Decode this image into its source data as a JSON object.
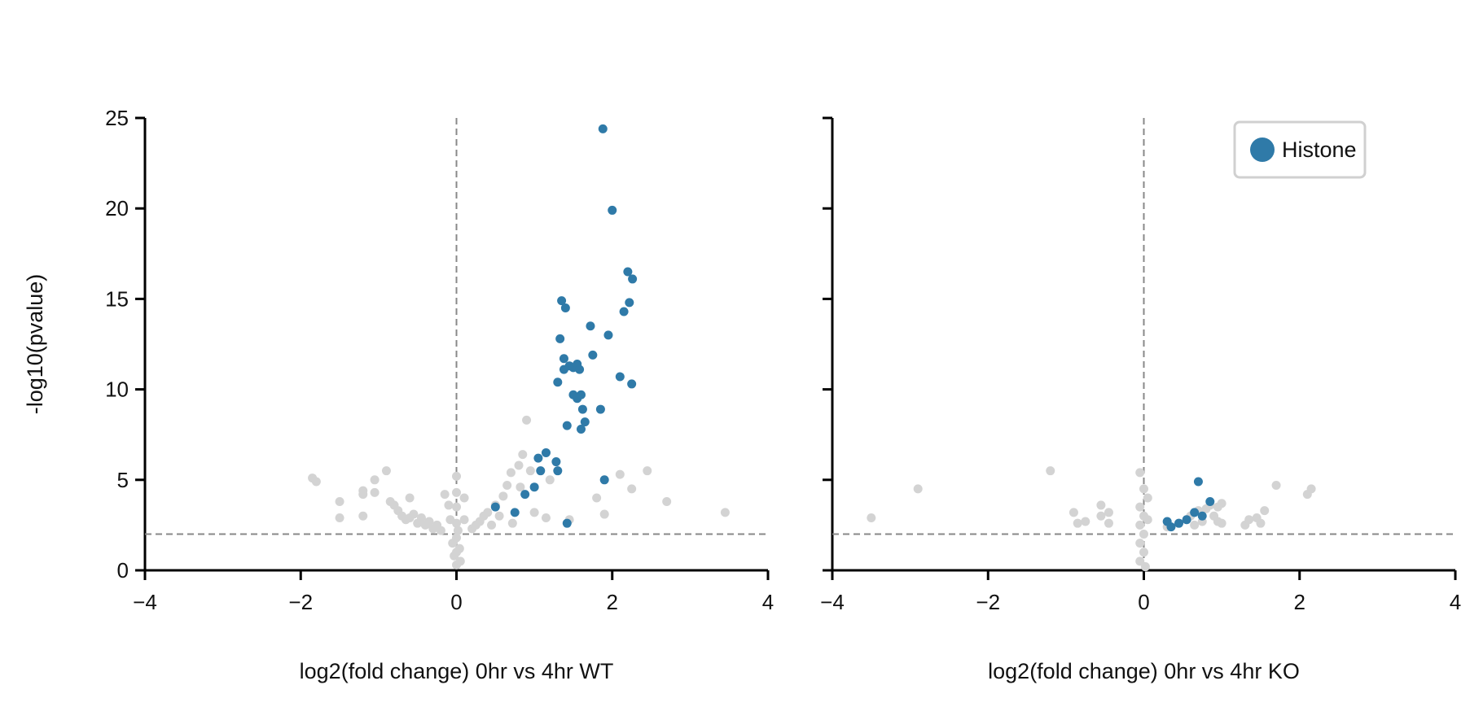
{
  "chart_data": [
    {
      "type": "scatter",
      "title": "",
      "xlabel": "log2(fold change) 0hr vs 4hr WT",
      "ylabel": "-log10(pvalue)",
      "xlim": [
        -4,
        4
      ],
      "ylim": [
        0,
        25
      ],
      "xticks": [
        "−4",
        "−2",
        "0",
        "2",
        "4"
      ],
      "yticks": [
        "0",
        "5",
        "10",
        "15",
        "20",
        "25"
      ],
      "reference_lines": {
        "vertical_x": 0,
        "horizontal_y": 2,
        "style": "dashed"
      },
      "grid": false,
      "legend": null,
      "series": [
        {
          "name": "",
          "color": "#d3d3d3",
          "points": [
            [
              -1.85,
              5.1
            ],
            [
              -1.8,
              4.9
            ],
            [
              -1.5,
              3.8
            ],
            [
              -1.5,
              2.9
            ],
            [
              -1.2,
              4.4
            ],
            [
              -1.2,
              4.2
            ],
            [
              -1.2,
              3.0
            ],
            [
              -1.05,
              5.0
            ],
            [
              -1.05,
              4.3
            ],
            [
              -0.9,
              5.5
            ],
            [
              -0.85,
              3.8
            ],
            [
              -0.8,
              3.6
            ],
            [
              -0.75,
              3.3
            ],
            [
              -0.7,
              3.0
            ],
            [
              -0.65,
              2.8
            ],
            [
              -0.6,
              4.0
            ],
            [
              -0.6,
              2.9
            ],
            [
              -0.55,
              3.1
            ],
            [
              -0.5,
              2.6
            ],
            [
              -0.45,
              2.9
            ],
            [
              -0.4,
              2.5
            ],
            [
              -0.35,
              2.7
            ],
            [
              -0.3,
              2.3
            ],
            [
              -0.25,
              2.5
            ],
            [
              -0.2,
              2.2
            ],
            [
              -0.15,
              4.2
            ],
            [
              -0.1,
              3.6
            ],
            [
              -0.08,
              2.8
            ],
            [
              -0.05,
              1.5
            ],
            [
              -0.03,
              0.8
            ],
            [
              0.0,
              5.2
            ],
            [
              0.0,
              4.3
            ],
            [
              0.0,
              3.5
            ],
            [
              0.0,
              2.6
            ],
            [
              0.0,
              1.8
            ],
            [
              0.0,
              1.0
            ],
            [
              0.0,
              0.3
            ],
            [
              0.02,
              2.2
            ],
            [
              0.04,
              1.2
            ],
            [
              0.05,
              0.5
            ],
            [
              0.1,
              4.0
            ],
            [
              0.1,
              2.8
            ],
            [
              0.2,
              2.3
            ],
            [
              0.25,
              2.5
            ],
            [
              0.3,
              2.7
            ],
            [
              0.35,
              3.0
            ],
            [
              0.4,
              3.2
            ],
            [
              0.45,
              2.5
            ],
            [
              0.5,
              3.6
            ],
            [
              0.55,
              3.0
            ],
            [
              0.6,
              4.1
            ],
            [
              0.65,
              4.7
            ],
            [
              0.7,
              5.4
            ],
            [
              0.72,
              2.6
            ],
            [
              0.8,
              5.8
            ],
            [
              0.82,
              4.6
            ],
            [
              0.85,
              6.4
            ],
            [
              0.9,
              8.3
            ],
            [
              0.95,
              5.5
            ],
            [
              1.0,
              3.2
            ],
            [
              1.15,
              2.9
            ],
            [
              1.2,
              5.0
            ],
            [
              1.45,
              2.8
            ],
            [
              1.9,
              3.1
            ],
            [
              1.8,
              4.0
            ],
            [
              2.1,
              5.3
            ],
            [
              2.25,
              4.5
            ],
            [
              2.45,
              5.5
            ],
            [
              2.7,
              3.8
            ],
            [
              3.45,
              3.2
            ]
          ]
        },
        {
          "name": "Histone",
          "color": "#2f7aa8",
          "points": [
            [
              1.88,
              24.4
            ],
            [
              2.0,
              19.9
            ],
            [
              2.2,
              16.5
            ],
            [
              2.26,
              16.1
            ],
            [
              1.35,
              14.9
            ],
            [
              1.4,
              14.5
            ],
            [
              2.22,
              14.8
            ],
            [
              2.15,
              14.3
            ],
            [
              1.72,
              13.5
            ],
            [
              1.95,
              13.0
            ],
            [
              1.33,
              12.8
            ],
            [
              1.75,
              11.9
            ],
            [
              1.38,
              11.7
            ],
            [
              1.45,
              11.3
            ],
            [
              1.5,
              11.2
            ],
            [
              1.55,
              11.4
            ],
            [
              1.38,
              11.1
            ],
            [
              1.58,
              11.1
            ],
            [
              2.1,
              10.7
            ],
            [
              1.3,
              10.4
            ],
            [
              2.25,
              10.3
            ],
            [
              1.5,
              9.7
            ],
            [
              1.55,
              9.5
            ],
            [
              1.6,
              9.7
            ],
            [
              1.85,
              8.9
            ],
            [
              1.62,
              8.9
            ],
            [
              1.65,
              8.2
            ],
            [
              1.42,
              8.0
            ],
            [
              1.6,
              7.8
            ],
            [
              1.05,
              6.2
            ],
            [
              1.15,
              6.5
            ],
            [
              1.28,
              6.0
            ],
            [
              1.08,
              5.5
            ],
            [
              1.3,
              5.5
            ],
            [
              1.9,
              5.0
            ],
            [
              1.0,
              4.6
            ],
            [
              0.88,
              4.2
            ],
            [
              0.5,
              3.5
            ],
            [
              0.75,
              3.2
            ],
            [
              1.42,
              2.6
            ]
          ]
        }
      ]
    },
    {
      "type": "scatter",
      "title": "",
      "xlabel": "log2(fold change) 0hr vs 4hr KO",
      "ylabel": "",
      "xlim": [
        -4,
        4
      ],
      "ylim": [
        0,
        25
      ],
      "xticks": [
        "−4",
        "−2",
        "0",
        "2",
        "4"
      ],
      "yticks": [],
      "reference_lines": {
        "vertical_x": 0,
        "horizontal_y": 2,
        "style": "dashed"
      },
      "grid": false,
      "legend": {
        "position": "top-right",
        "entries": [
          "Histone"
        ]
      },
      "series": [
        {
          "name": "",
          "color": "#d3d3d3",
          "points": [
            [
              -3.5,
              2.9
            ],
            [
              -2.9,
              4.5
            ],
            [
              -1.2,
              5.5
            ],
            [
              -0.9,
              3.2
            ],
            [
              -0.85,
              2.6
            ],
            [
              -0.75,
              2.7
            ],
            [
              -0.55,
              3.6
            ],
            [
              -0.55,
              3.0
            ],
            [
              -0.45,
              2.6
            ],
            [
              -0.45,
              3.2
            ],
            [
              -0.05,
              5.4
            ],
            [
              -0.05,
              3.5
            ],
            [
              -0.05,
              2.5
            ],
            [
              -0.05,
              1.5
            ],
            [
              -0.05,
              0.5
            ],
            [
              0.0,
              4.5
            ],
            [
              0.0,
              3.0
            ],
            [
              0.0,
              2.0
            ],
            [
              0.0,
              1.0
            ],
            [
              0.02,
              0.2
            ],
            [
              0.05,
              2.8
            ],
            [
              0.05,
              4.0
            ],
            [
              0.3,
              2.4
            ],
            [
              0.45,
              2.6
            ],
            [
              0.55,
              2.8
            ],
            [
              0.6,
              3.0
            ],
            [
              0.7,
              3.3
            ],
            [
              0.75,
              2.7
            ],
            [
              0.8,
              3.4
            ],
            [
              0.85,
              3.6
            ],
            [
              0.9,
              3.0
            ],
            [
              0.95,
              3.5
            ],
            [
              1.0,
              3.7
            ],
            [
              1.0,
              2.6
            ],
            [
              1.3,
              2.5
            ],
            [
              1.35,
              2.8
            ],
            [
              1.45,
              2.9
            ],
            [
              1.5,
              2.6
            ],
            [
              1.55,
              3.3
            ],
            [
              1.7,
              4.7
            ],
            [
              2.1,
              4.2
            ],
            [
              2.15,
              4.5
            ],
            [
              0.95,
              2.7
            ],
            [
              0.65,
              2.5
            ]
          ]
        },
        {
          "name": "Histone",
          "color": "#2f7aa8",
          "points": [
            [
              0.7,
              4.9
            ],
            [
              0.85,
              3.8
            ],
            [
              0.65,
              3.2
            ],
            [
              0.55,
              2.8
            ],
            [
              0.45,
              2.6
            ],
            [
              0.35,
              2.4
            ],
            [
              0.3,
              2.7
            ],
            [
              0.75,
              3.0
            ]
          ]
        }
      ]
    }
  ]
}
